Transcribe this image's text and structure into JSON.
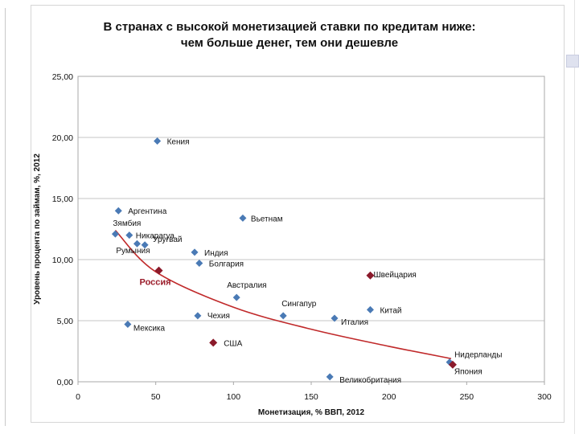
{
  "chart_data": {
    "type": "scatter",
    "title": "В странах с высокой монетизацией ставки по кредитам ниже:",
    "subtitle": "чем больше денег, тем они дешевле",
    "xlabel": "Монетизация, % ВВП, 2012",
    "ylabel": "Уровень процента по займам, %, 2012",
    "xlim": [
      0,
      300
    ],
    "ylim": [
      0,
      25
    ],
    "x_ticks": [
      0,
      50,
      100,
      150,
      200,
      250,
      300
    ],
    "y_ticks": [
      "0,00",
      "5,00",
      "10,00",
      "15,00",
      "20,00",
      "25,00"
    ],
    "grid": "horizontal",
    "colors": {
      "point": "#4a7ab5",
      "highlight": "#8b1a2b",
      "trend": "#c0292a"
    },
    "points": [
      {
        "label": "Кения",
        "x": 51,
        "y": 19.7,
        "highlight": false
      },
      {
        "label": "Аргентина",
        "x": 26,
        "y": 14.0,
        "highlight": false
      },
      {
        "label": "Зямбия",
        "x": 24,
        "y": 12.1,
        "highlight": false
      },
      {
        "label": "Никарагуа",
        "x": 33,
        "y": 12.0,
        "highlight": false
      },
      {
        "label": "Уругвай",
        "x": 43,
        "y": 11.2,
        "highlight": false
      },
      {
        "label": "Румыния",
        "x": 38,
        "y": 11.3,
        "highlight": false
      },
      {
        "label": "Индия",
        "x": 75,
        "y": 10.6,
        "highlight": false
      },
      {
        "label": "Болгария",
        "x": 78,
        "y": 9.7,
        "highlight": false
      },
      {
        "label": "Россия",
        "x": 52,
        "y": 9.1,
        "highlight": true
      },
      {
        "label": "Вьетнам",
        "x": 106,
        "y": 13.4,
        "highlight": false
      },
      {
        "label": "Австралия",
        "x": 102,
        "y": 6.9,
        "highlight": false
      },
      {
        "label": "Швейцария",
        "x": 188,
        "y": 8.7,
        "highlight": true
      },
      {
        "label": "Сингапур",
        "x": 132,
        "y": 5.4,
        "highlight": false
      },
      {
        "label": "Китай",
        "x": 188,
        "y": 5.9,
        "highlight": false
      },
      {
        "label": "Италия",
        "x": 165,
        "y": 5.2,
        "highlight": false
      },
      {
        "label": "Чехия",
        "x": 77,
        "y": 5.4,
        "highlight": false
      },
      {
        "label": "Мексика",
        "x": 32,
        "y": 4.7,
        "highlight": false
      },
      {
        "label": "США",
        "x": 87,
        "y": 3.2,
        "highlight": true
      },
      {
        "label": "Великобритания",
        "x": 162,
        "y": 0.4,
        "highlight": false
      },
      {
        "label": "Нидерланды",
        "x": 239,
        "y": 1.6,
        "highlight": false
      },
      {
        "label": "Япония",
        "x": 241,
        "y": 1.4,
        "highlight": true
      }
    ],
    "trendline": {
      "type": "power",
      "points": [
        [
          24,
          12.4
        ],
        [
          50,
          9.0
        ],
        [
          100,
          6.1
        ],
        [
          150,
          4.3
        ],
        [
          200,
          2.9
        ],
        [
          240,
          1.9
        ]
      ]
    }
  }
}
